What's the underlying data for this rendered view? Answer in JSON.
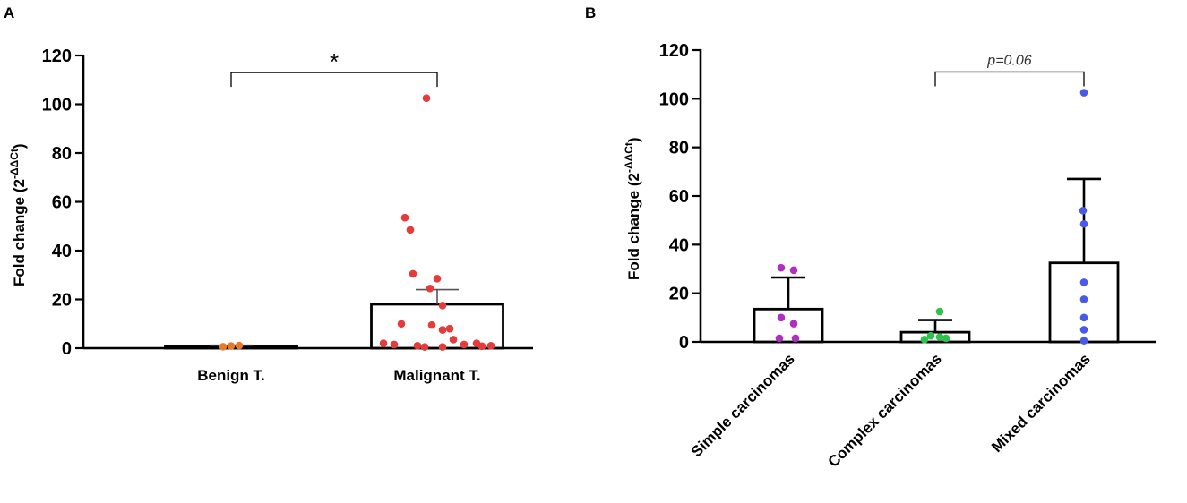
{
  "panels": {
    "A": {
      "label": "A"
    },
    "B": {
      "label": "B"
    }
  },
  "chart_data": [
    {
      "id": "A",
      "type": "bar",
      "title": "",
      "ylabel": "Fold change (2^-ΔΔCt)",
      "ylabel_main": "Fold change (2",
      "ylabel_sup": "-ΔΔCt",
      "ylabel_close": ")",
      "ylim": [
        0,
        120
      ],
      "yticks": [
        0,
        20,
        40,
        60,
        80,
        100,
        120
      ],
      "grid": false,
      "categories": [
        "Benign T.",
        "Malignant T."
      ],
      "bars": [
        {
          "category": "Benign T.",
          "mean": 0.8,
          "error": 0.4,
          "color": "#e8782a",
          "points": [
            0.6,
            0.9,
            1.1
          ]
        },
        {
          "category": "Malignant T.",
          "mean": 18,
          "error": 6,
          "color": "#e63b3b",
          "points": [
            102.5,
            53.5,
            48.5,
            30.5,
            28.5,
            24.5,
            17.5,
            10,
            9.5,
            8,
            7.5,
            3.5,
            2,
            2,
            1.5,
            1.5,
            1,
            1,
            0.8,
            0.5,
            0.5
          ]
        }
      ],
      "annotation": {
        "text": "*",
        "from": "Benign T.",
        "to": "Malignant T.",
        "y": 113
      }
    },
    {
      "id": "B",
      "type": "bar",
      "title": "",
      "ylabel": "Fold change (2^-ΔΔCt)",
      "ylabel_main": "Fold change (2",
      "ylabel_sup": "-ΔΔCt",
      "ylabel_close": ")",
      "ylim": [
        0,
        120
      ],
      "yticks": [
        0,
        20,
        40,
        60,
        80,
        100,
        120
      ],
      "grid": false,
      "categories": [
        "Simple carcinomas",
        "Complex carcinomas",
        "Mixed carcinomas"
      ],
      "bars": [
        {
          "category": "Simple carcinomas",
          "mean": 13.5,
          "error": 13,
          "color": "#b02fc0",
          "points": [
            30.5,
            29.5,
            10,
            7.5,
            1.5,
            1.5
          ]
        },
        {
          "category": "Complex carcinomas",
          "mean": 4,
          "error": 5,
          "color": "#2ec24a",
          "points": [
            12.5,
            2.5,
            2,
            1.5,
            1
          ]
        },
        {
          "category": "Mixed carcinomas",
          "mean": 32.5,
          "error": 34.5,
          "color": "#4a5ae8",
          "points": [
            102.5,
            54,
            48.5,
            24.5,
            17.5,
            10,
            5,
            0.5
          ]
        }
      ],
      "annotation": {
        "text": "p=0.06",
        "from": "Complex carcinomas",
        "to": "Mixed carcinomas",
        "y": 111
      }
    }
  ]
}
